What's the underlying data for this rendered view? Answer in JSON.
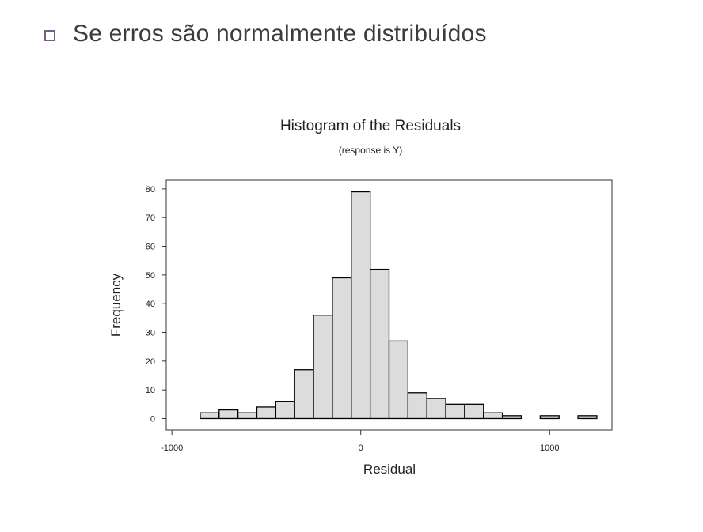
{
  "slide": {
    "bullet_text": "Se erros são normalmente distribuídos"
  },
  "chart_data": {
    "type": "bar",
    "title": "Histogram of the Residuals",
    "subtitle": "(response is Y)",
    "xlabel": "Residual",
    "ylabel": "Frequency",
    "bin_width": 100,
    "bin_centers": [
      -800,
      -700,
      -600,
      -500,
      -400,
      -300,
      -200,
      -100,
      0,
      100,
      200,
      300,
      400,
      500,
      600,
      700,
      800,
      900,
      1000,
      1100,
      1200
    ],
    "values": [
      2,
      3,
      2,
      4,
      6,
      17,
      36,
      49,
      79,
      52,
      27,
      9,
      7,
      5,
      5,
      2,
      1,
      0,
      1,
      0,
      1
    ],
    "xlim": [
      -1030,
      1330
    ],
    "ylim": [
      -4,
      83
    ],
    "xticks": [
      -1000,
      0,
      1000
    ],
    "xtick_labels": [
      "-1000",
      "0",
      "1000"
    ],
    "yticks": [
      0,
      10,
      20,
      30,
      40,
      50,
      60,
      70,
      80
    ],
    "ytick_labels": [
      "0",
      "10",
      "20",
      "30",
      "40",
      "50",
      "60",
      "70",
      "80"
    ],
    "bar_fill": "#dcdcdc",
    "bar_stroke": "#000000",
    "grid": false
  }
}
